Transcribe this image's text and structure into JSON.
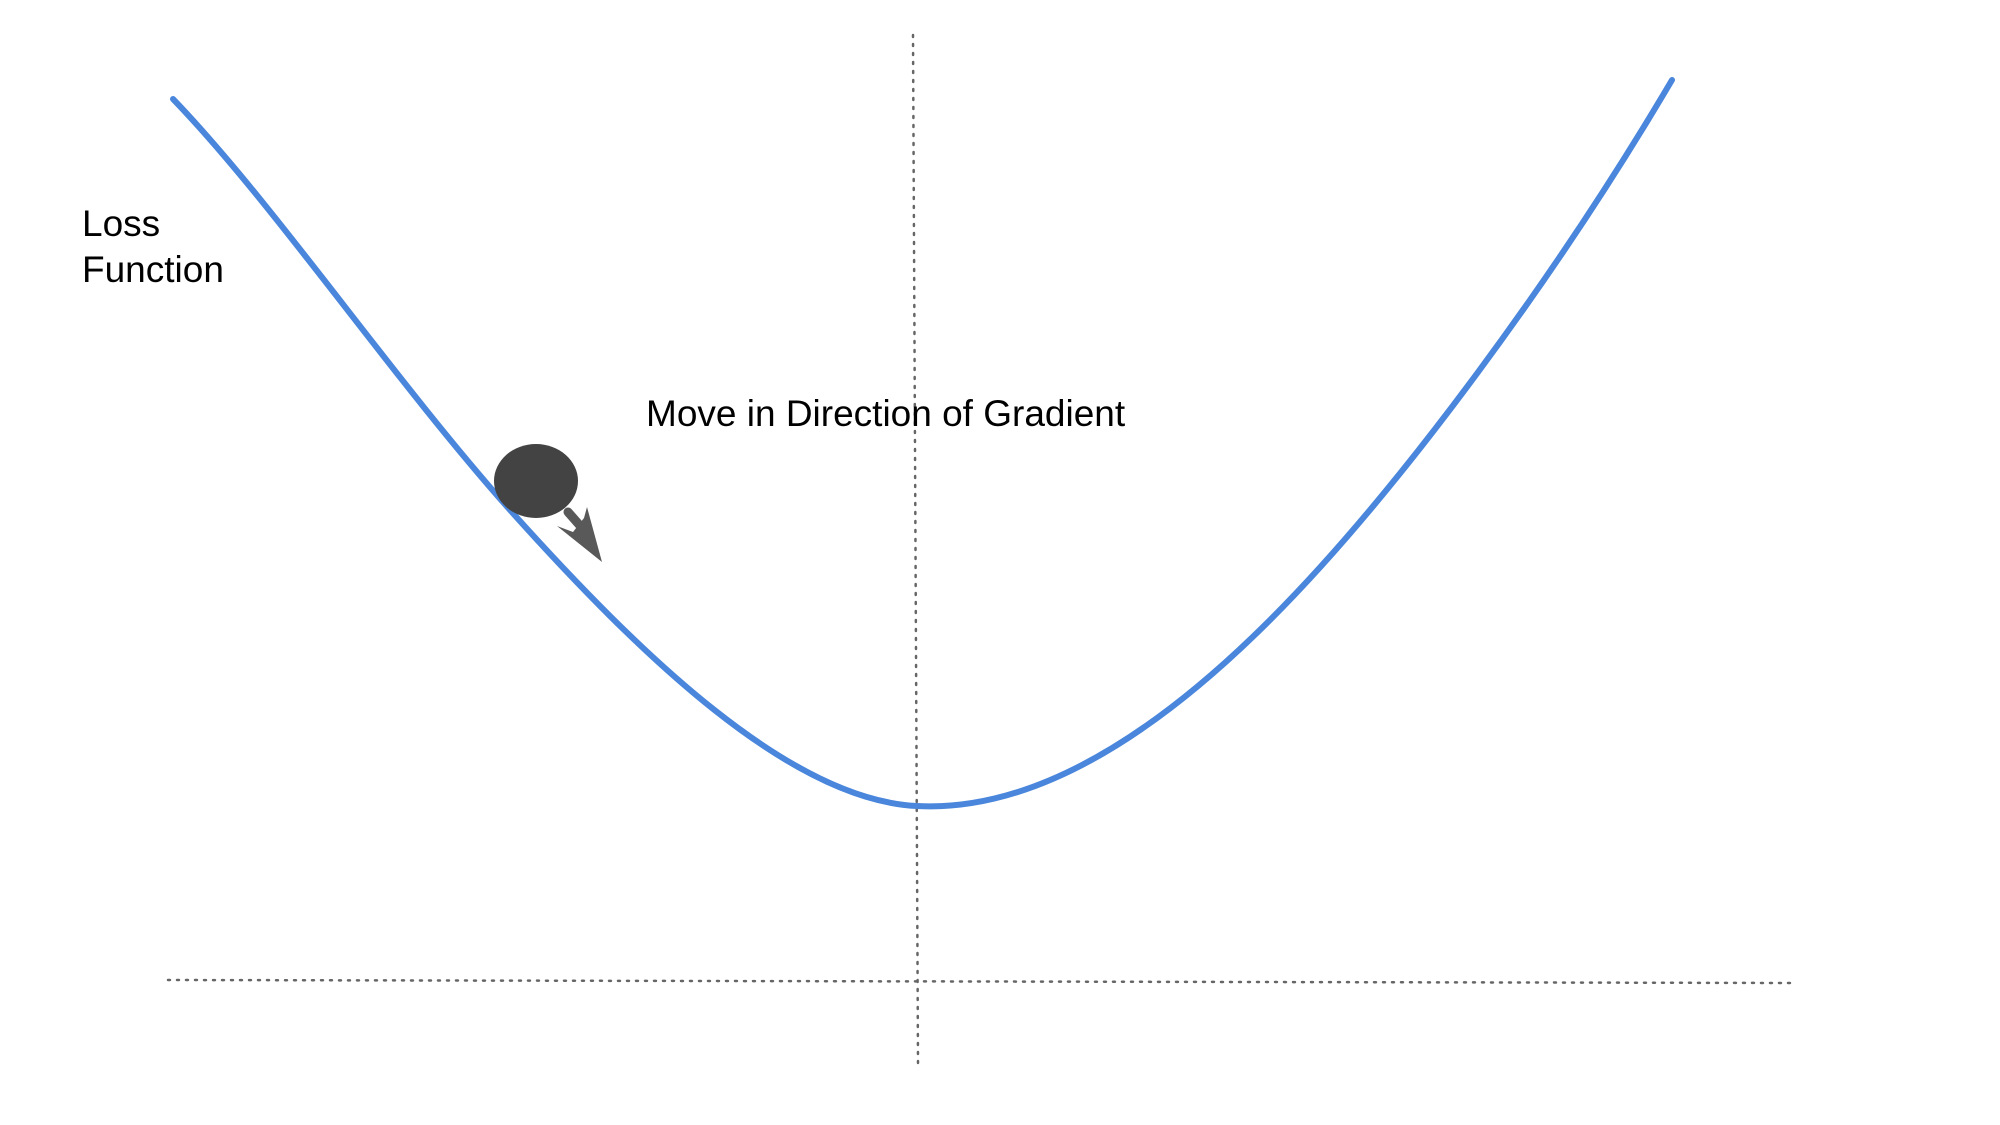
{
  "labels": {
    "loss_line1": "Loss",
    "loss_line2": "Function",
    "gradient": "Move in Direction of Gradient"
  },
  "colors": {
    "curve": "#4a86dc",
    "axis": "#666666",
    "ball": "#434343",
    "arrow": "#595959",
    "text": "#000000"
  }
}
